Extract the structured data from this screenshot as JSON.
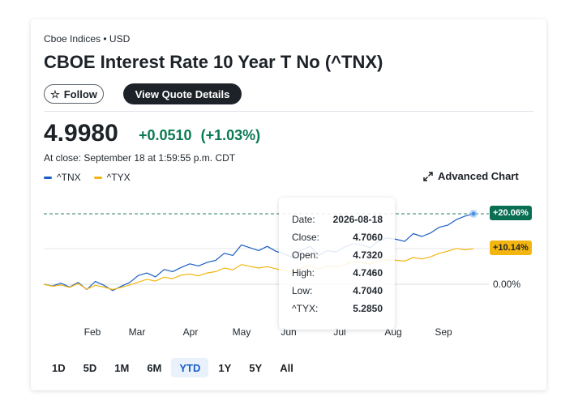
{
  "header": {
    "exchange": "Cboe Indices • USD",
    "title": "CBOE Interest Rate 10 Year T No (^TNX)",
    "follow_label": "Follow",
    "quote_details_label": "View Quote Details"
  },
  "quote": {
    "price": "4.9980",
    "change": "+0.0510",
    "change_pct": "(+1.03%)",
    "close_time": "At close: September 18 at 1:59:55 p.m. CDT"
  },
  "legend": [
    {
      "name": "^TNX",
      "color": "#1a5ec3"
    },
    {
      "name": "^TYX",
      "color": "#f3b610"
    }
  ],
  "advanced_chart_label": "Advanced Chart",
  "badges": {
    "tnx": "+20.06%",
    "tyx": "+10.14%",
    "zero": "0.00%"
  },
  "tooltip": {
    "rows": [
      {
        "label": "Date:",
        "value": "2026-08-18"
      },
      {
        "label": "Close:",
        "value": "4.7060"
      },
      {
        "label": "Open:",
        "value": "4.7320"
      },
      {
        "label": "High:",
        "value": "4.7460"
      },
      {
        "label": "Low:",
        "value": "4.7040"
      },
      {
        "label": "^TYX:",
        "value": "5.2850"
      }
    ]
  },
  "ranges": [
    "1D",
    "5D",
    "1M",
    "6M",
    "YTD",
    "1Y",
    "5Y",
    "All"
  ],
  "active_range": "YTD",
  "chart_data": {
    "type": "line",
    "x_ticks": [
      "Feb",
      "Mar",
      "Apr",
      "May",
      "Jun",
      "Jul",
      "Aug",
      "Sep"
    ],
    "y_unit": "% change",
    "ylim": [
      -2,
      22
    ],
    "grid": false,
    "series": [
      {
        "name": "^TNX",
        "color": "#1a5ec3",
        "x": [
          0,
          2,
          4,
          6,
          8,
          10,
          12,
          14,
          16,
          18,
          20,
          22,
          24,
          26,
          28,
          30,
          32,
          34,
          36,
          38,
          40,
          42,
          44,
          46,
          48,
          50,
          52,
          54,
          56,
          58,
          60,
          62,
          64,
          66,
          68,
          70,
          72,
          74,
          76,
          78,
          80,
          82,
          84,
          86,
          88,
          90,
          92,
          94,
          96,
          98,
          100
        ],
        "values": [
          0,
          -0.5,
          0.3,
          -0.8,
          0.5,
          -1.5,
          0.8,
          -0.3,
          -1.8,
          -0.6,
          0.5,
          2.5,
          3.2,
          2.1,
          4.2,
          3.6,
          4.8,
          5.8,
          5.2,
          6.2,
          6.8,
          8.8,
          8.2,
          11.2,
          10.4,
          9.6,
          10.8,
          9.4,
          8.6,
          7.6,
          9.8,
          10.8,
          8.2,
          9.6,
          9.2,
          10.6,
          11.6,
          11.2,
          10.4,
          12.4,
          13.2,
          12.8,
          12.2,
          14.4,
          13.6,
          14.6,
          16.2,
          16.8,
          18.4,
          19.4,
          20.06
        ]
      },
      {
        "name": "^TYX",
        "color": "#f3b610",
        "x": [
          0,
          2,
          4,
          6,
          8,
          10,
          12,
          14,
          16,
          18,
          20,
          22,
          24,
          26,
          28,
          30,
          32,
          34,
          36,
          38,
          40,
          42,
          44,
          46,
          48,
          50,
          52,
          54,
          56,
          58,
          60,
          62,
          64,
          66,
          68,
          70,
          72,
          74,
          76,
          78,
          80,
          82,
          84,
          86,
          88,
          90,
          92,
          94,
          96,
          98,
          100
        ],
        "values": [
          0,
          -0.6,
          -0.2,
          -0.9,
          0.2,
          -1.4,
          -0.3,
          -0.8,
          -1.5,
          -0.9,
          -0.2,
          0.6,
          1.4,
          0.9,
          2.0,
          1.6,
          2.6,
          2.9,
          2.4,
          3.2,
          3.6,
          4.6,
          4.1,
          5.6,
          5.1,
          4.6,
          5.0,
          4.4,
          3.9,
          3.4,
          4.6,
          5.3,
          4.3,
          5.2,
          5.0,
          5.6,
          6.4,
          6.2,
          5.8,
          6.6,
          7.0,
          6.8,
          6.6,
          7.6,
          7.2,
          7.8,
          8.8,
          9.4,
          10.2,
          9.8,
          10.14
        ]
      }
    ],
    "reference_line": 20.06,
    "tooltip_x": 72
  }
}
